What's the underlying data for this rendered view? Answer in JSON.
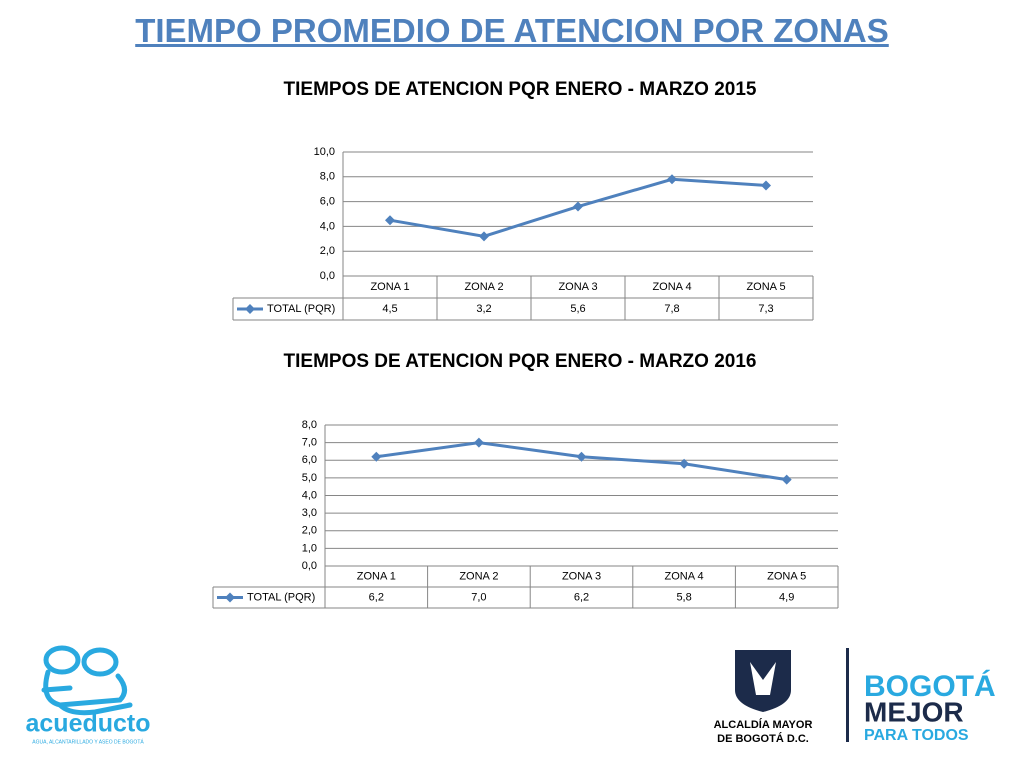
{
  "title": "TIEMPO PROMEDIO DE ATENCION POR ZONAS",
  "chart_data": [
    {
      "type": "line",
      "title": "TIEMPOS DE ATENCION PQR ENERO - MARZO 2015",
      "categories": [
        "ZONA 1",
        "ZONA 2",
        "ZONA 3",
        "ZONA 4",
        "ZONA 5"
      ],
      "series": [
        {
          "name": "TOTAL (PQR)",
          "color": "#4f81bd",
          "values": [
            4.5,
            3.2,
            5.6,
            7.8,
            7.3
          ],
          "value_labels": [
            "4,5",
            "3,2",
            "5,6",
            "7,8",
            "7,3"
          ]
        }
      ],
      "ylim": [
        0,
        10
      ],
      "yticks": [
        {
          "value": 0,
          "label": "0,0"
        },
        {
          "value": 2,
          "label": "2,0"
        },
        {
          "value": 4,
          "label": "4,0"
        },
        {
          "value": 6,
          "label": "6,0"
        },
        {
          "value": 8,
          "label": "8,0"
        },
        {
          "value": 10,
          "label": "10,0"
        }
      ],
      "grid": true
    },
    {
      "type": "line",
      "title": "TIEMPOS DE ATENCION PQR ENERO - MARZO 2016",
      "categories": [
        "ZONA 1",
        "ZONA 2",
        "ZONA 3",
        "ZONA 4",
        "ZONA 5"
      ],
      "series": [
        {
          "name": "TOTAL (PQR)",
          "color": "#4f81bd",
          "values": [
            6.2,
            7.0,
            6.2,
            5.8,
            4.9
          ],
          "value_labels": [
            "6,2",
            "7,0",
            "6,2",
            "5,8",
            "4,9"
          ]
        }
      ],
      "ylim": [
        0,
        8
      ],
      "yticks": [
        {
          "value": 0,
          "label": "0,0"
        },
        {
          "value": 1,
          "label": "1,0"
        },
        {
          "value": 2,
          "label": "2,0"
        },
        {
          "value": 3,
          "label": "3,0"
        },
        {
          "value": 4,
          "label": "4,0"
        },
        {
          "value": 5,
          "label": "5,0"
        },
        {
          "value": 6,
          "label": "6,0"
        },
        {
          "value": 7,
          "label": "7,0"
        },
        {
          "value": 8,
          "label": "8,0"
        }
      ],
      "grid": true
    }
  ],
  "logos": {
    "acueducto": "acueducto",
    "acueducto_sub": "AGUA, ALCANTARILLADO Y ASEO DE BOGOTÁ",
    "alcaldia_1": "ALCALDÍA MAYOR",
    "alcaldia_2": "DE BOGOTÁ D.C.",
    "bogota_1": "BOGOTÁ",
    "bogota_2": "MEJOR",
    "bogota_3": "PARA TODOS"
  }
}
